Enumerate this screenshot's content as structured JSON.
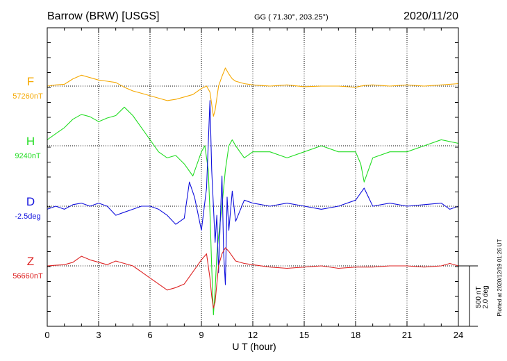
{
  "header": {
    "station": "Barrow (BRW)  [USGS]",
    "coords": "GG ( 71.30°, 203.25°)",
    "date": "2020/11/20"
  },
  "plotted_note": "Plotted at 2020/12/19 01:26 UT",
  "scale_bar": {
    "label_nt": "500 nT",
    "label_deg": "2.0 deg"
  },
  "chart_data": {
    "type": "line",
    "xlabel": "U T (hour)",
    "xlim": [
      0,
      24
    ],
    "x_ticks": [
      0,
      3,
      6,
      9,
      12,
      15,
      18,
      21,
      24
    ],
    "grid": true,
    "series": [
      {
        "name": "F",
        "baseline_label": "57260nT",
        "color": "#f5a800",
        "baseline_row": 0,
        "x": [
          0,
          0.5,
          1.0,
          1.5,
          2.0,
          2.5,
          3.0,
          3.5,
          4.0,
          4.5,
          5.0,
          5.5,
          6.0,
          6.5,
          7.0,
          7.5,
          8.0,
          8.5,
          9.0,
          9.3,
          9.5,
          9.6,
          9.7,
          9.8,
          9.9,
          10.0,
          10.2,
          10.4,
          10.6,
          10.8,
          11.0,
          11.5,
          12.0,
          13.0,
          14.0,
          15.0,
          16.0,
          17.0,
          18.0,
          18.5,
          19.0,
          20.0,
          21.0,
          22.0,
          23.0,
          24.0
        ],
        "values": [
          0,
          10,
          15,
          60,
          90,
          70,
          50,
          40,
          30,
          -10,
          -40,
          -60,
          -80,
          -100,
          -120,
          -110,
          -90,
          -70,
          -20,
          0,
          -50,
          -150,
          -250,
          -200,
          -100,
          0,
          80,
          150,
          100,
          60,
          40,
          20,
          10,
          0,
          10,
          -5,
          0,
          0,
          -10,
          5,
          10,
          0,
          10,
          0,
          10,
          20
        ]
      },
      {
        "name": "H",
        "baseline_label": "9240nT",
        "color": "#22dd22",
        "baseline_row": 1,
        "x": [
          0,
          0.5,
          1.0,
          1.5,
          2.0,
          2.5,
          3.0,
          3.5,
          4.0,
          4.5,
          5.0,
          5.5,
          6.0,
          6.5,
          7.0,
          7.5,
          8.0,
          8.5,
          9.0,
          9.2,
          9.4,
          9.5,
          9.6,
          9.7,
          9.8,
          9.9,
          10.0,
          10.2,
          10.4,
          10.6,
          10.8,
          11.0,
          11.5,
          12.0,
          13.0,
          14.0,
          15.0,
          16.0,
          17.0,
          18.0,
          18.3,
          18.5,
          19.0,
          20.0,
          21.0,
          22.0,
          23.0,
          24.0
        ],
        "values": [
          50,
          100,
          150,
          220,
          260,
          240,
          200,
          230,
          250,
          320,
          250,
          150,
          50,
          -50,
          -100,
          -80,
          -150,
          -250,
          -50,
          0,
          -200,
          -550,
          -1000,
          -1400,
          -1200,
          -900,
          -750,
          -500,
          -200,
          0,
          50,
          0,
          -100,
          -50,
          -50,
          -100,
          -50,
          0,
          -50,
          -50,
          -150,
          -300,
          -100,
          -50,
          -50,
          0,
          50,
          20
        ]
      },
      {
        "name": "D",
        "baseline_label": "-2.5deg",
        "color": "#1010dd",
        "baseline_row": 2,
        "x": [
          0,
          0.5,
          1.0,
          1.5,
          2.0,
          2.5,
          3.0,
          3.5,
          4.0,
          4.5,
          5.0,
          5.5,
          6.0,
          6.5,
          7.0,
          7.5,
          8.0,
          8.3,
          8.6,
          9.0,
          9.3,
          9.5,
          9.6,
          9.7,
          9.8,
          9.9,
          10.0,
          10.1,
          10.2,
          10.3,
          10.4,
          10.5,
          10.6,
          10.8,
          11.0,
          11.5,
          12.0,
          13.0,
          14.0,
          15.0,
          16.0,
          17.0,
          18.0,
          18.5,
          19.0,
          20.0,
          21.0,
          22.0,
          23.0,
          23.5,
          24.0
        ],
        "values": [
          -0.1,
          0.0,
          -0.1,
          0.05,
          0.1,
          0.0,
          0.1,
          0.0,
          -0.3,
          -0.2,
          -0.1,
          0.0,
          0.0,
          -0.1,
          -0.3,
          -0.6,
          -0.4,
          0.8,
          0.3,
          -0.8,
          0.6,
          3.5,
          1.2,
          0.0,
          -1.2,
          -0.3,
          -2.2,
          -0.5,
          1.0,
          -1.6,
          -2.6,
          0.3,
          -0.8,
          0.5,
          -0.5,
          0.2,
          0.1,
          0.0,
          0.1,
          0.0,
          -0.1,
          0.0,
          0.2,
          0.6,
          0.0,
          0.1,
          0.0,
          0.05,
          0.1,
          -0.1,
          0.0
        ]
      },
      {
        "name": "Z",
        "baseline_label": "56660nT",
        "color": "#dd2222",
        "baseline_row": 3,
        "x": [
          0,
          0.5,
          1.0,
          1.5,
          2.0,
          2.5,
          3.0,
          3.5,
          4.0,
          4.5,
          5.0,
          5.5,
          6.0,
          6.5,
          7.0,
          7.5,
          8.0,
          8.5,
          9.0,
          9.3,
          9.5,
          9.6,
          9.7,
          9.8,
          9.9,
          10.0,
          10.2,
          10.4,
          10.6,
          10.8,
          11.0,
          11.5,
          12.0,
          13.0,
          14.0,
          15.0,
          16.0,
          17.0,
          18.0,
          19.0,
          20.0,
          21.0,
          22.0,
          23.0,
          23.5,
          24.0
        ],
        "values": [
          0,
          5,
          10,
          30,
          80,
          50,
          30,
          10,
          40,
          20,
          0,
          -50,
          -100,
          -150,
          -200,
          -180,
          -150,
          -50,
          50,
          100,
          -100,
          -250,
          -350,
          -300,
          -150,
          0,
          100,
          150,
          120,
          80,
          40,
          20,
          10,
          -10,
          -20,
          -10,
          0,
          -20,
          -10,
          -10,
          0,
          0,
          -10,
          0,
          20,
          0
        ]
      }
    ]
  }
}
